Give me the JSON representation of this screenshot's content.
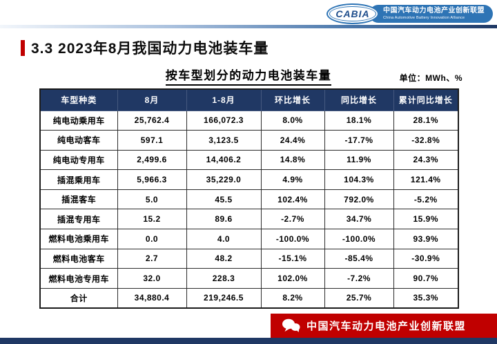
{
  "header": {
    "logo_text": "CABIA",
    "org_cn": "中国汽车动力电池产业创新联盟",
    "org_en": "China Automotive Battery Innovation Alliance"
  },
  "slide": {
    "title": "3.3  2023年8月我国动力电池装车量",
    "table_title": "按车型划分的动力电池装车量",
    "unit_label": "单位：MWh、%"
  },
  "chart_data": {
    "type": "table",
    "title": "按车型划分的动力电池装车量",
    "unit": "MWh、%",
    "columns": [
      "车型种类",
      "8月",
      "1-8月",
      "环比增长",
      "同比增长",
      "累计同比增长"
    ],
    "rows": [
      [
        "纯电动乘用车",
        "25,762.4",
        "166,072.3",
        "8.0%",
        "18.1%",
        "28.1%"
      ],
      [
        "纯电动客车",
        "597.1",
        "3,123.5",
        "24.4%",
        "-17.7%",
        "-32.8%"
      ],
      [
        "纯电动专用车",
        "2,499.6",
        "14,406.2",
        "14.8%",
        "11.9%",
        "24.3%"
      ],
      [
        "插混乘用车",
        "5,966.3",
        "35,229.0",
        "4.9%",
        "104.3%",
        "121.4%"
      ],
      [
        "插混客车",
        "5.0",
        "45.5",
        "102.4%",
        "792.0%",
        "-5.2%"
      ],
      [
        "插混专用车",
        "15.2",
        "89.6",
        "-2.7%",
        "34.7%",
        "15.9%"
      ],
      [
        "燃料电池乘用车",
        "0.0",
        "4.0",
        "-100.0%",
        "-100.0%",
        "93.9%"
      ],
      [
        "燃料电池客车",
        "2.7",
        "48.2",
        "-15.1%",
        "-85.4%",
        "-30.9%"
      ],
      [
        "燃料电池专用车",
        "32.0",
        "228.3",
        "102.0%",
        "-7.2%",
        "90.7%"
      ],
      [
        "合计",
        "34,880.4",
        "219,246.5",
        "8.2%",
        "25.7%",
        "35.3%"
      ]
    ]
  },
  "footer": {
    "text": "中国汽车动力电池产业创新联盟"
  },
  "colors": {
    "table_header_navy": "#203864",
    "accent_red": "#C00000",
    "logo_blue": "#2E74B5",
    "bottom_strip_navy": "#1F3864"
  }
}
